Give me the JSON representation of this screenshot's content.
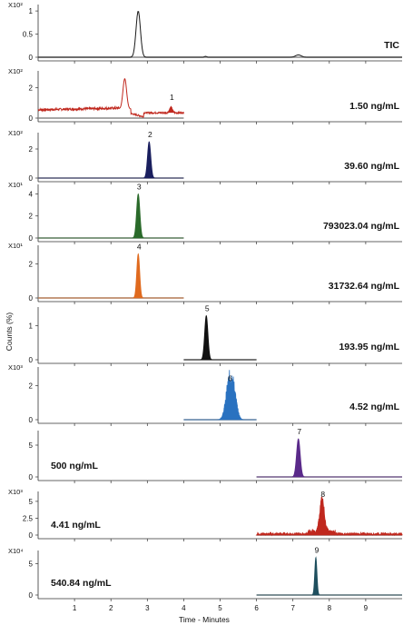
{
  "chart_data": {
    "type": "line",
    "xlabel": "Time - Minutes",
    "ylabel": "Counts (%)",
    "xlim": [
      0,
      10
    ],
    "x_ticks": [
      "1",
      "2",
      "3",
      "4",
      "5",
      "6",
      "7",
      "8",
      "9"
    ],
    "panels": [
      {
        "multiplier": "X10²",
        "label": "TIC",
        "peak_number": "",
        "color": "#1a1a1a",
        "y_ticks": [
          "0",
          "0.5",
          "1"
        ],
        "ymax": 1.1,
        "fill": false,
        "peaks": [
          {
            "rt": 2.75,
            "height": 1.0,
            "width": 0.06
          },
          {
            "rt": 7.15,
            "height": 0.05,
            "width": 0.08
          },
          {
            "rt": 4.6,
            "height": 0.02,
            "width": 0.03
          }
        ],
        "baseline_range": [
          0,
          10
        ]
      },
      {
        "multiplier": "X10²",
        "label": "1.50 ng/mL",
        "peak_number": "1",
        "color": "#c0281e",
        "y_ticks": [
          "0",
          "2"
        ],
        "ymax": 3.0,
        "fill": false,
        "special": "noise1",
        "peak_x": 3.65,
        "baseline_range": [
          0,
          4
        ]
      },
      {
        "multiplier": "X10²",
        "label": "39.60 ng/mL",
        "peak_number": "2",
        "color": "#1a1f5e",
        "y_ticks": [
          "0",
          "2"
        ],
        "ymax": 3.0,
        "fill": true,
        "peaks": [
          {
            "rt": 3.05,
            "height": 2.5,
            "width": 0.045
          }
        ],
        "baseline_range": [
          0,
          4
        ]
      },
      {
        "multiplier": "X10¹",
        "label": "793023.04 ng/mL",
        "peak_number": "3",
        "color": "#2a6a2a",
        "y_ticks": [
          "0",
          "2",
          "4"
        ],
        "ymax": 4.7,
        "fill": true,
        "peaks": [
          {
            "rt": 2.75,
            "height": 4.0,
            "width": 0.045
          }
        ],
        "baseline_range": [
          0,
          4
        ]
      },
      {
        "multiplier": "X10¹",
        "label": "31732.64 ng/mL",
        "peak_number": "4",
        "color": "#e06a1e",
        "y_ticks": [
          "0",
          "2"
        ],
        "ymax": 3.0,
        "fill": true,
        "peaks": [
          {
            "rt": 2.75,
            "height": 2.6,
            "width": 0.04
          }
        ],
        "baseline_range": [
          0,
          4
        ]
      },
      {
        "multiplier": "",
        "label": "193.95 ng/mL",
        "peak_number": "5",
        "color": "#111111",
        "y_ticks": [
          "0",
          "1"
        ],
        "ymax": 1.5,
        "fill": true,
        "peaks": [
          {
            "rt": 4.62,
            "height": 1.3,
            "width": 0.045
          }
        ],
        "baseline_range": [
          4,
          6
        ]
      },
      {
        "multiplier": "X10³",
        "label": "4.52 ng/mL",
        "peak_number": "6",
        "color": "#2a72c0",
        "y_ticks": [
          "0",
          "2"
        ],
        "ymax": 3.0,
        "fill": true,
        "special": "noisy6",
        "peaks": [
          {
            "rt": 5.25,
            "height": 2.0,
            "width": 0.09
          },
          {
            "rt": 5.38,
            "height": 1.2,
            "width": 0.08
          }
        ],
        "baseline_range": [
          4,
          6
        ]
      },
      {
        "multiplier": "",
        "label": "500 ng/mL",
        "peak_number": "7",
        "color": "#5a2a8a",
        "y_ticks": [
          "0",
          "5"
        ],
        "ymax": 7.0,
        "fill": true,
        "peaks": [
          {
            "rt": 7.15,
            "height": 6.0,
            "width": 0.05
          }
        ],
        "baseline_range": [
          6,
          10
        ]
      },
      {
        "multiplier": "X10³",
        "label": "4.41 ng/mL",
        "peak_number": "8",
        "color": "#c0281e",
        "y_ticks": [
          "0",
          "2.5",
          "5"
        ],
        "ymax": 6.2,
        "fill": true,
        "special": "noisy8",
        "peaks": [
          {
            "rt": 7.8,
            "height": 5.0,
            "width": 0.06
          }
        ],
        "baseline_range": [
          6,
          10
        ]
      },
      {
        "multiplier": "X10⁴",
        "label": "540.84 ng/mL",
        "peak_number": "9",
        "color": "#1f4f5e",
        "y_ticks": [
          "0",
          "5"
        ],
        "ymax": 6.8,
        "fill": true,
        "peaks": [
          {
            "rt": 7.63,
            "height": 6.0,
            "width": 0.03
          }
        ],
        "baseline_range": [
          6,
          10
        ]
      }
    ]
  }
}
